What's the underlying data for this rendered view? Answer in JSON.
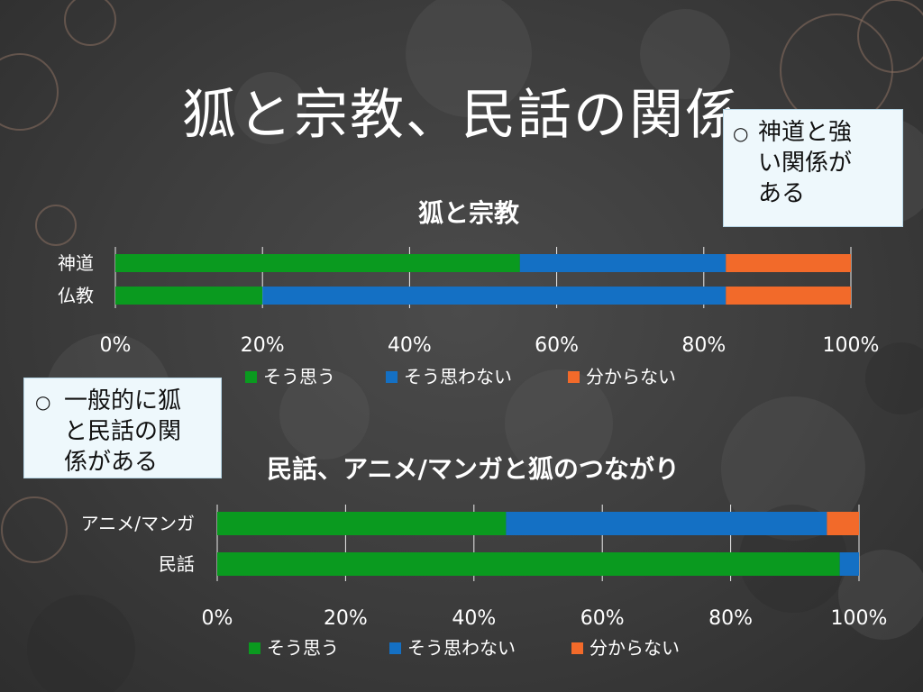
{
  "slide": {
    "title": "狐と宗教、民話の関係"
  },
  "notes": {
    "shinto": {
      "bullet": "○",
      "text": "神道と強い関係がある",
      "lines": [
        "神道と強",
        "い関係が",
        "ある"
      ]
    },
    "folklore": {
      "bullet": "○",
      "text": "一般的に狐と民話の関係がある",
      "lines": [
        "一般的に狐",
        "と民話の関",
        "係がある"
      ]
    }
  },
  "colors": {
    "agree": "#0a9a1f",
    "disagree": "#1470c4",
    "unknown": "#f26a2a",
    "grid": "#ffffff"
  },
  "chart_data": [
    {
      "type": "bar",
      "orientation": "horizontal",
      "stacked": "percent",
      "title": "狐と宗教",
      "categories": [
        "神道",
        "仏教"
      ],
      "series": [
        {
          "name": "そう思う",
          "values": [
            55,
            20
          ]
        },
        {
          "name": "そう思わない",
          "values": [
            28,
            63
          ]
        },
        {
          "name": "分からない",
          "values": [
            17,
            17
          ]
        }
      ],
      "xlim": [
        0,
        100
      ],
      "ticks": [
        "0%",
        "20%",
        "40%",
        "60%",
        "80%",
        "100%"
      ],
      "grid": true,
      "legend": "bottom"
    },
    {
      "type": "bar",
      "orientation": "horizontal",
      "stacked": "percent",
      "title": "民話、アニメ/マンガと狐のつながり",
      "categories": [
        "アニメ/マンガ",
        "民話"
      ],
      "series": [
        {
          "name": "そう思う",
          "values": [
            45,
            97
          ]
        },
        {
          "name": "そう思わない",
          "values": [
            50,
            3
          ]
        },
        {
          "name": "分からない",
          "values": [
            5,
            0
          ]
        }
      ],
      "xlim": [
        0,
        100
      ],
      "ticks": [
        "0%",
        "20%",
        "40%",
        "60%",
        "80%",
        "100%"
      ],
      "grid": true,
      "legend": "bottom"
    }
  ]
}
